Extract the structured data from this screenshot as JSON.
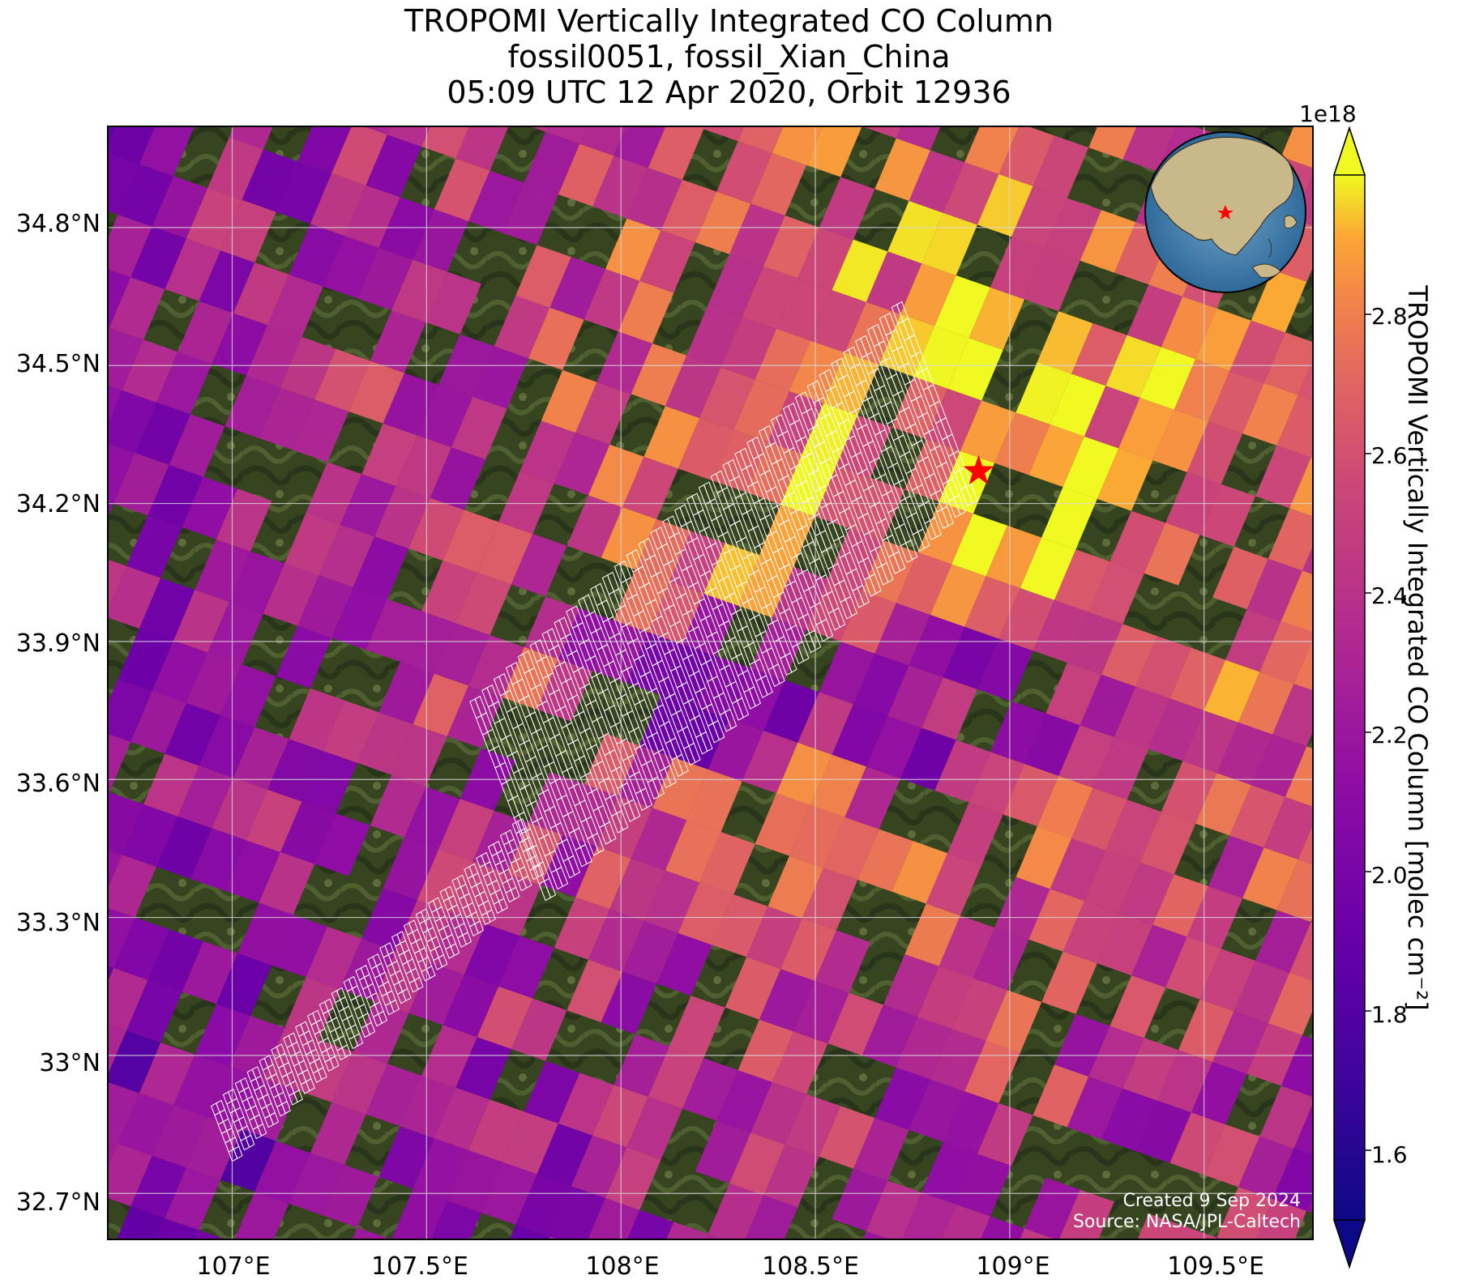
{
  "title": {
    "line1": "TROPOMI Vertically Integrated CO Column",
    "line2": "fossil0051, fossil_Xian_China",
    "line3": "05:09 UTC 12 Apr 2020, Orbit 12936"
  },
  "map": {
    "projection": "plate carree",
    "lon_range": [
      106.68,
      109.78
    ],
    "lat_range": [
      32.6,
      35.02
    ],
    "lon_ticks": [
      "107°E",
      "107.5°E",
      "108°E",
      "108.5°E",
      "109°E",
      "109.5°E"
    ],
    "lat_ticks": [
      "34.8°N",
      "34.5°N",
      "34.2°N",
      "33.9°N",
      "33.6°N",
      "33.3°N",
      "33°N",
      "32.7°N"
    ],
    "grid": true,
    "background": "satellite imagery (vegetated mountains)",
    "target_marker": {
      "name": "fossil_Xian_China",
      "lon": 108.92,
      "lat": 34.27,
      "symbol": "red star",
      "color": "#ff0000"
    },
    "overlay": "white outlines of OCO-3 target-mode sounding footprints",
    "inset": {
      "type": "globe",
      "center": "East Asia",
      "marker": "red star"
    }
  },
  "colorbar": {
    "label": "TROPOMI Vertically Integrated CO Column [molec cm⁻²]",
    "exponent": "1e18",
    "colormap": "plasma",
    "ticks": [
      "2.8",
      "2.6",
      "2.4",
      "2.2",
      "2.0",
      "1.8",
      "1.6"
    ],
    "range": [
      1.5,
      3.0
    ],
    "extend": "both"
  },
  "credit": {
    "created": "Created 9 Sep 2024",
    "source": "Source: NASA/JPL-Caltech"
  },
  "colors": {
    "low": "#0d0887",
    "mid": "#cc4778",
    "high": "#f0f921",
    "star": "#ff0000"
  }
}
